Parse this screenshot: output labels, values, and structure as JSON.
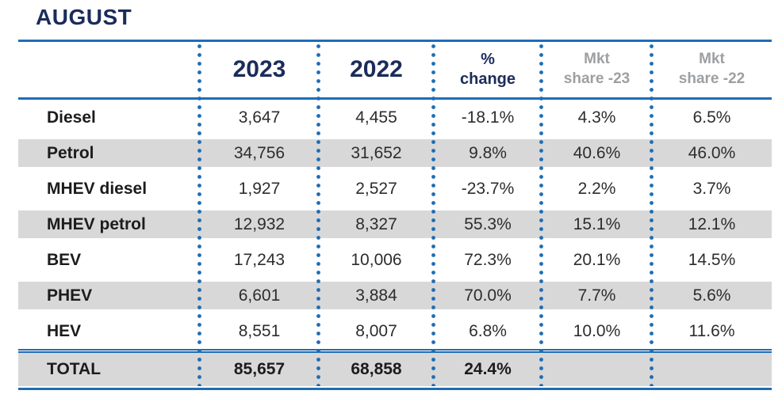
{
  "page_title": "AUGUST",
  "colors": {
    "navy_text": "#1b2c5a",
    "blue_rule": "#1e6db6",
    "blue_dots": "#1f6cb4",
    "row_shade": "#d8d8d8",
    "muted_header_text": "#9da0a3",
    "body_text": "#2d2d2d"
  },
  "header": {
    "year_2023": "2023",
    "year_2022": "2022",
    "pct_line1": "%",
    "pct_line2": "change",
    "mkt23_line1": "Mkt",
    "mkt23_line2": "share -23",
    "mkt22_line1": "Mkt",
    "mkt22_line2": "share -22"
  },
  "chart_data": {
    "type": "table",
    "title": "AUGUST",
    "columns": [
      "",
      "2023",
      "2022",
      "% change",
      "Mkt share -23",
      "Mkt share -22"
    ],
    "rows": [
      {
        "label": "Diesel",
        "v2023": "3,647",
        "v2022": "4,455",
        "change": "-18.1%",
        "share23": "4.3%",
        "share22": "6.5%",
        "shaded": false
      },
      {
        "label": "Petrol",
        "v2023": "34,756",
        "v2022": "31,652",
        "change": "9.8%",
        "share23": "40.6%",
        "share22": "46.0%",
        "shaded": true
      },
      {
        "label": "MHEV diesel",
        "v2023": "1,927",
        "v2022": "2,527",
        "change": "-23.7%",
        "share23": "2.2%",
        "share22": "3.7%",
        "shaded": false
      },
      {
        "label": "MHEV petrol",
        "v2023": "12,932",
        "v2022": "8,327",
        "change": "55.3%",
        "share23": "15.1%",
        "share22": "12.1%",
        "shaded": true
      },
      {
        "label": "BEV",
        "v2023": "17,243",
        "v2022": "10,006",
        "change": "72.3%",
        "share23": "20.1%",
        "share22": "14.5%",
        "shaded": false
      },
      {
        "label": "PHEV",
        "v2023": "6,601",
        "v2022": "3,884",
        "change": "70.0%",
        "share23": "7.7%",
        "share22": "5.6%",
        "shaded": true
      },
      {
        "label": "HEV",
        "v2023": "8,551",
        "v2022": "8,007",
        "change": "6.8%",
        "share23": "10.0%",
        "share22": "11.6%",
        "shaded": false
      }
    ],
    "total": {
      "label": "TOTAL",
      "v2023": "85,657",
      "v2022": "68,858",
      "change": "24.4%",
      "share23": "",
      "share22": ""
    }
  }
}
